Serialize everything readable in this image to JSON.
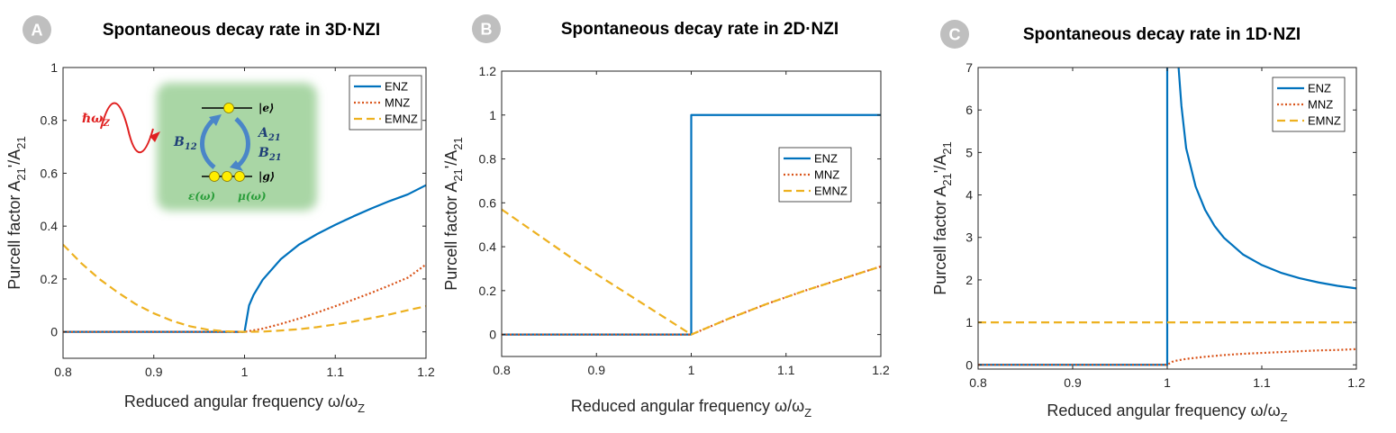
{
  "chart_data": [
    {
      "panel_badge": "A",
      "title": "Spontaneous decay rate in 3D·NZI",
      "type": "line",
      "xlabel": "Reduced angular frequency ω/ω",
      "xlabel_sub": "Z",
      "ylabel": "Purcell factor A",
      "ylabel_sub1": "21",
      "ylabel_mid": "'/A",
      "ylabel_sub2": "21",
      "xlim": [
        0.8,
        1.2
      ],
      "ylim": [
        -0.1,
        1.0
      ],
      "xticks": [
        "0.8",
        "0.9",
        "1",
        "1.1",
        "1.2"
      ],
      "xtick_values": [
        0.8,
        0.9,
        1.0,
        1.1,
        1.2
      ],
      "yticks": [
        "0",
        "0.2",
        "0.4",
        "0.6",
        "0.8",
        "1"
      ],
      "ytick_values": [
        0,
        0.2,
        0.4,
        0.6,
        0.8,
        1.0
      ],
      "legend": [
        "ENZ",
        "MNZ",
        "EMNZ"
      ],
      "legend_position": "top-right",
      "series": [
        {
          "name": "ENZ",
          "style": "solid",
          "color": "#0072BD",
          "x": [
            0.8,
            0.9,
            1.0,
            1.005,
            1.01,
            1.02,
            1.04,
            1.06,
            1.08,
            1.1,
            1.12,
            1.14,
            1.16,
            1.18,
            1.2
          ],
          "y": [
            0,
            0,
            0,
            0.1,
            0.14,
            0.197,
            0.275,
            0.33,
            0.37,
            0.405,
            0.437,
            0.467,
            0.495,
            0.52,
            0.555
          ]
        },
        {
          "name": "MNZ",
          "style": "dotted",
          "color": "#D95319",
          "x": [
            0.8,
            0.9,
            1.0,
            1.02,
            1.04,
            1.06,
            1.08,
            1.1,
            1.12,
            1.14,
            1.16,
            1.18,
            1.2
          ],
          "y": [
            0,
            0,
            0,
            0.012,
            0.03,
            0.05,
            0.073,
            0.097,
            0.122,
            0.148,
            0.176,
            0.205,
            0.255
          ]
        },
        {
          "name": "EMNZ",
          "style": "dashed",
          "color": "#EDB120",
          "x": [
            0.8,
            0.82,
            0.84,
            0.86,
            0.88,
            0.9,
            0.92,
            0.94,
            0.96,
            0.98,
            1.0,
            1.02,
            1.04,
            1.06,
            1.08,
            1.1,
            1.12,
            1.14,
            1.16,
            1.18,
            1.2
          ],
          "y": [
            0.33,
            0.26,
            0.2,
            0.15,
            0.105,
            0.07,
            0.042,
            0.021,
            0.008,
            0.002,
            0,
            0.001,
            0.005,
            0.01,
            0.018,
            0.028,
            0.039,
            0.052,
            0.066,
            0.082,
            0.097
          ]
        }
      ],
      "inset": {
        "photon_label": "ℏω",
        "photon_sub": "Z",
        "excited": "|e⟩",
        "ground": "|g⟩",
        "b12": "B",
        "b12_sub": "12",
        "a21": "A",
        "a21_sub": "21",
        "b21": "B",
        "b21_sub": "21",
        "eps": "ε(ω)",
        "mu": "μ(ω)"
      }
    },
    {
      "panel_badge": "B",
      "title": "Spontaneous decay rate in 2D·NZI",
      "type": "line",
      "xlabel": "Reduced angular frequency ω/ω",
      "xlabel_sub": "Z",
      "ylabel": "Purcell factor A",
      "ylabel_sub1": "21",
      "ylabel_mid": "'/A",
      "ylabel_sub2": "21",
      "xlim": [
        0.8,
        1.2
      ],
      "ylim": [
        -0.1,
        1.2
      ],
      "xticks": [
        "0.8",
        "0.9",
        "1",
        "1.1",
        "1.2"
      ],
      "xtick_values": [
        0.8,
        0.9,
        1.0,
        1.1,
        1.2
      ],
      "yticks": [
        "0",
        "0.2",
        "0.4",
        "0.6",
        "0.8",
        "1",
        "1.2"
      ],
      "ytick_values": [
        0,
        0.2,
        0.4,
        0.6,
        0.8,
        1.0,
        1.2
      ],
      "legend": [
        "ENZ",
        "MNZ",
        "EMNZ"
      ],
      "legend_position": "center-right",
      "series": [
        {
          "name": "ENZ",
          "style": "solid",
          "color": "#0072BD",
          "x": [
            0.8,
            1.0,
            1.0,
            1.2
          ],
          "y": [
            0,
            0,
            1.0,
            1.0
          ]
        },
        {
          "name": "MNZ",
          "style": "dotted",
          "color": "#D95319",
          "x": [
            0.8,
            1.0,
            1.04,
            1.08,
            1.12,
            1.16,
            1.2
          ],
          "y": [
            0,
            0,
            0.073,
            0.14,
            0.2,
            0.255,
            0.31
          ]
        },
        {
          "name": "EMNZ",
          "style": "dashed",
          "color": "#EDB120",
          "x": [
            0.8,
            0.84,
            0.88,
            0.92,
            0.96,
            1.0,
            1.04,
            1.08,
            1.12,
            1.16,
            1.2
          ],
          "y": [
            0.57,
            0.45,
            0.33,
            0.22,
            0.11,
            0,
            0.073,
            0.14,
            0.2,
            0.255,
            0.31
          ]
        }
      ]
    },
    {
      "panel_badge": "C",
      "title": "Spontaneous decay rate in 1D·NZI",
      "type": "line",
      "xlabel": "Reduced angular frequency ω/ω",
      "xlabel_sub": "Z",
      "ylabel": "Purcell factor A",
      "ylabel_sub1": "21",
      "ylabel_mid": "'/A",
      "ylabel_sub2": "21",
      "xlim": [
        0.8,
        1.2
      ],
      "ylim": [
        -0.1,
        7.0
      ],
      "xticks": [
        "0.8",
        "0.9",
        "1",
        "1.1",
        "1.2"
      ],
      "xtick_values": [
        0.8,
        0.9,
        1.0,
        1.1,
        1.2
      ],
      "yticks": [
        "0",
        "1",
        "2",
        "3",
        "4",
        "5",
        "6",
        "7"
      ],
      "ytick_values": [
        0,
        1,
        2,
        3,
        4,
        5,
        6,
        7
      ],
      "legend": [
        "ENZ",
        "MNZ",
        "EMNZ"
      ],
      "legend_position": "top-right",
      "series": [
        {
          "name": "ENZ",
          "style": "solid",
          "color": "#0072BD",
          "x": [
            0.8,
            1.0,
            1.0
          ],
          "y": [
            0,
            0,
            7.0
          ]
        },
        {
          "name": "ENZ",
          "style": "solid",
          "color": "#0072BD",
          "x": [
            1.012,
            1.015,
            1.02,
            1.03,
            1.04,
            1.05,
            1.06,
            1.08,
            1.1,
            1.12,
            1.14,
            1.16,
            1.18,
            1.2
          ],
          "y": [
            7.0,
            6.1,
            5.1,
            4.2,
            3.65,
            3.27,
            2.99,
            2.6,
            2.35,
            2.17,
            2.04,
            1.94,
            1.86,
            1.8
          ]
        },
        {
          "name": "MNZ",
          "style": "dotted",
          "color": "#D95319",
          "x": [
            0.8,
            1.0,
            1.005,
            1.01,
            1.02,
            1.04,
            1.06,
            1.08,
            1.1,
            1.12,
            1.14,
            1.16,
            1.18,
            1.2
          ],
          "y": [
            0,
            0,
            0.07,
            0.1,
            0.14,
            0.19,
            0.23,
            0.26,
            0.28,
            0.3,
            0.32,
            0.34,
            0.35,
            0.37
          ]
        },
        {
          "name": "EMNZ",
          "style": "dashed",
          "color": "#EDB120",
          "x": [
            0.8,
            1.2
          ],
          "y": [
            1.0,
            1.0
          ]
        }
      ]
    }
  ]
}
